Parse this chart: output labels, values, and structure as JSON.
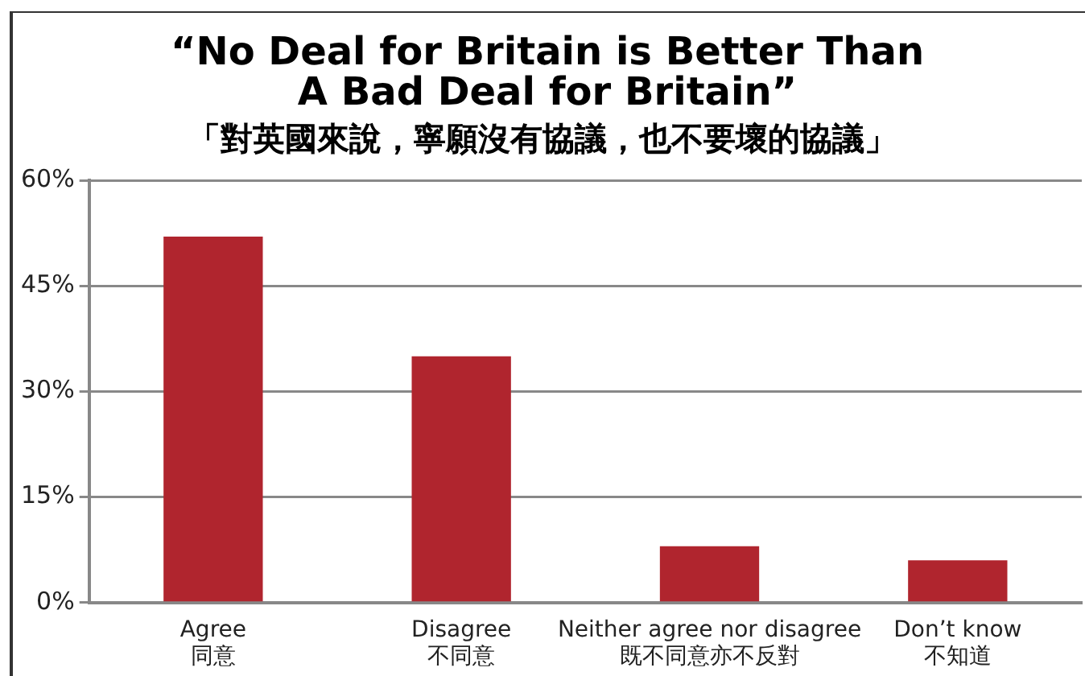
{
  "chart_data": {
    "type": "bar",
    "title": "“No Deal for Britain is Better Than A Bad Deal for Britain”",
    "subtitle": "「對英國來說，寧願沒有協議，也不要壞的協議」",
    "categories": [
      "Agree\n同意",
      "Disagree\n不同意",
      "Neither agree nor disagree\n既不同意亦不反對",
      "Don’t know\n不知道"
    ],
    "values": [
      52,
      35,
      8,
      6
    ],
    "color": "#b0252e",
    "ylim": [
      0,
      60
    ],
    "yticks": [
      {
        "value": 0,
        "label": "0%"
      },
      {
        "value": 15,
        "label": "15%"
      },
      {
        "value": 30,
        "label": "30%"
      },
      {
        "value": 45,
        "label": "45%"
      },
      {
        "value": 60,
        "label": "60%"
      }
    ],
    "grid": "y",
    "legend": false
  }
}
